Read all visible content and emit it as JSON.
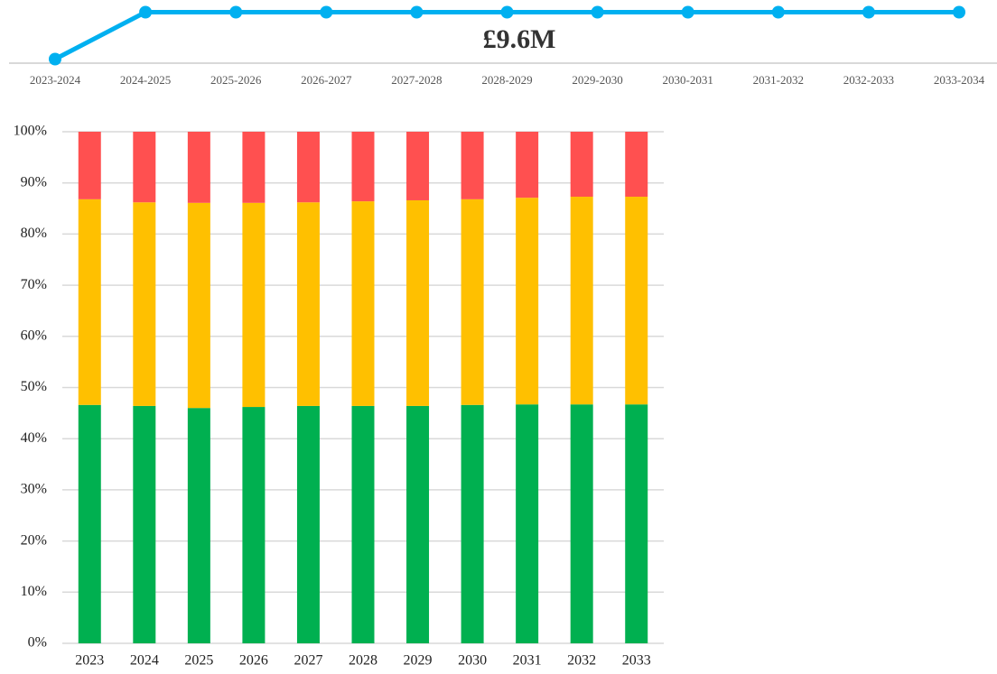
{
  "chart_data": [
    {
      "type": "line",
      "categories": [
        "2023-2024",
        "2024-2025",
        "2025-2026",
        "2026-2027",
        "2027-2028",
        "2028-2029",
        "2029-2030",
        "2030-2031",
        "2031-2032",
        "2032-2033",
        "2033-2034"
      ],
      "values": [
        8.8,
        9.6,
        9.6,
        9.6,
        9.6,
        9.6,
        9.6,
        9.6,
        9.6,
        9.6,
        9.6
      ],
      "color": "#00b0f0",
      "ylim": [
        8.7,
        9.7
      ],
      "annotation": "£9.6M"
    },
    {
      "type": "stacked_bar",
      "categories": [
        "2023",
        "2024",
        "2025",
        "2026",
        "2027",
        "2028",
        "2029",
        "2030",
        "2031",
        "2032",
        "2033"
      ],
      "series": [
        {
          "color": "#00b050",
          "values": [
            46.6,
            46.4,
            46.0,
            46.2,
            46.4,
            46.4,
            46.4,
            46.6,
            46.7,
            46.7,
            46.7
          ]
        },
        {
          "color": "#ffc000",
          "values": [
            40.2,
            39.8,
            40.1,
            39.9,
            39.8,
            40.0,
            40.2,
            40.2,
            40.4,
            40.6,
            40.6
          ]
        },
        {
          "color": "#ff5050",
          "values": [
            13.2,
            13.8,
            13.9,
            13.9,
            13.8,
            13.6,
            13.4,
            13.2,
            12.9,
            12.7,
            12.7
          ]
        }
      ],
      "ylim": [
        0,
        100
      ],
      "yticks": [
        {
          "value": 0,
          "label": "0%"
        },
        {
          "value": 10,
          "label": "10%"
        },
        {
          "value": 20,
          "label": "20%"
        },
        {
          "value": 30,
          "label": "30%"
        },
        {
          "value": 40,
          "label": "40%"
        },
        {
          "value": 50,
          "label": "50%"
        },
        {
          "value": 60,
          "label": "60%"
        },
        {
          "value": 70,
          "label": "70%"
        },
        {
          "value": 80,
          "label": "80%"
        },
        {
          "value": 90,
          "label": "90%"
        },
        {
          "value": 100,
          "label": "100%"
        }
      ],
      "grid": true
    }
  ]
}
